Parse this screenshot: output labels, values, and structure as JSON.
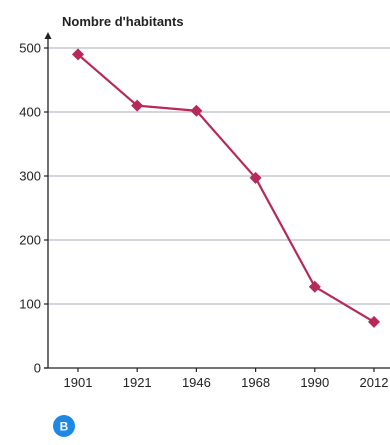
{
  "chart_data": {
    "type": "line",
    "title": "",
    "ylabel": "Nombre d'habitants",
    "xlabel": "",
    "categories": [
      "1901",
      "1921",
      "1946",
      "1968",
      "1990",
      "2012"
    ],
    "series": [
      {
        "values": [
          490,
          410,
          402,
          297,
          127,
          72
        ]
      }
    ],
    "ylim": [
      0,
      500
    ],
    "yticks": [
      0,
      100,
      200,
      300,
      400,
      500
    ],
    "grid": true,
    "legend": "none",
    "colors": {
      "line": "#b8295a",
      "grid": "#b9bec6",
      "axis": "#222222",
      "badge": "#1e88e5"
    }
  },
  "badge": {
    "label": "B"
  }
}
